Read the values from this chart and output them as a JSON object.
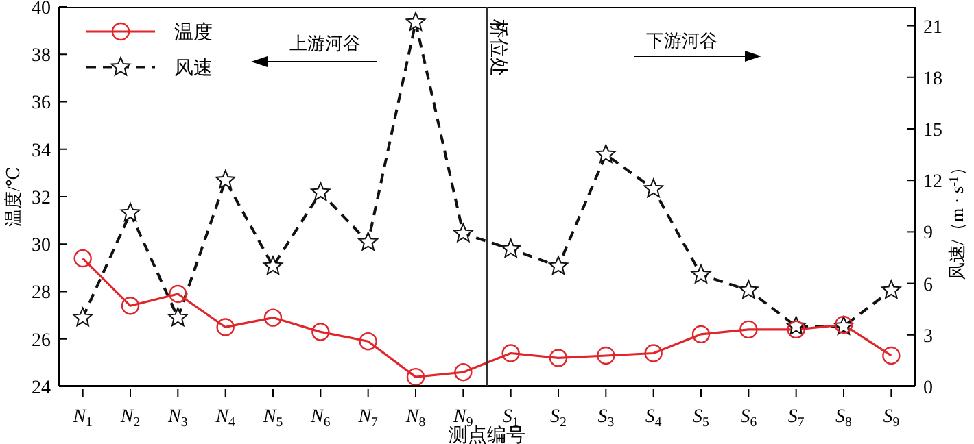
{
  "chart_data": {
    "type": "line",
    "xlabel": "测点编号",
    "ylabel": "温度/℃",
    "y2label": "风速/（m · s$^{-1}$）",
    "categories": [
      "N$_{1}$",
      "N$_{2}$",
      "N$_{3}$",
      "N$_{4}$",
      "N$_{5}$",
      "N$_{6}$",
      "N$_{7}$",
      "N$_{8}$",
      "N$_{9}$",
      "S$_{1}$",
      "S$_{2}$",
      "S$_{3}$",
      "S$_{4}$",
      "S$_{5}$",
      "S$_{6}$",
      "S$_{7}$",
      "S$_{8}$",
      "S$_{9}$"
    ],
    "series": [
      {
        "name": "温度",
        "color": "#e0262b",
        "marker": "circle",
        "line_style": "solid",
        "values": [
          29.4,
          27.4,
          27.9,
          26.5,
          26.9,
          26.3,
          25.9,
          24.4,
          24.6,
          25.4,
          25.2,
          25.3,
          25.4,
          26.2,
          26.4,
          26.4,
          26.6,
          25.3
        ]
      },
      {
        "name": "风速",
        "color": "#111111",
        "marker": "star",
        "line_style": "dashed",
        "axis": "y2",
        "values": [
          4.0,
          10.1,
          4.0,
          12.0,
          7.0,
          11.3,
          8.4,
          21.2,
          8.9,
          8.0,
          7.0,
          13.5,
          11.5,
          6.5,
          5.6,
          3.5,
          3.5,
          5.6
        ]
      }
    ],
    "ylim": [
      24,
      40
    ],
    "yticks": [
      24,
      26,
      28,
      30,
      32,
      34,
      36,
      38,
      40
    ],
    "y2lim": [
      0,
      22.1
    ],
    "y2ticks": [
      0,
      3,
      6,
      9,
      12,
      15,
      18,
      21
    ],
    "annotations": [
      "上游河谷",
      "下游河谷",
      "桥位处"
    ],
    "grid": false,
    "legend": "top left"
  }
}
